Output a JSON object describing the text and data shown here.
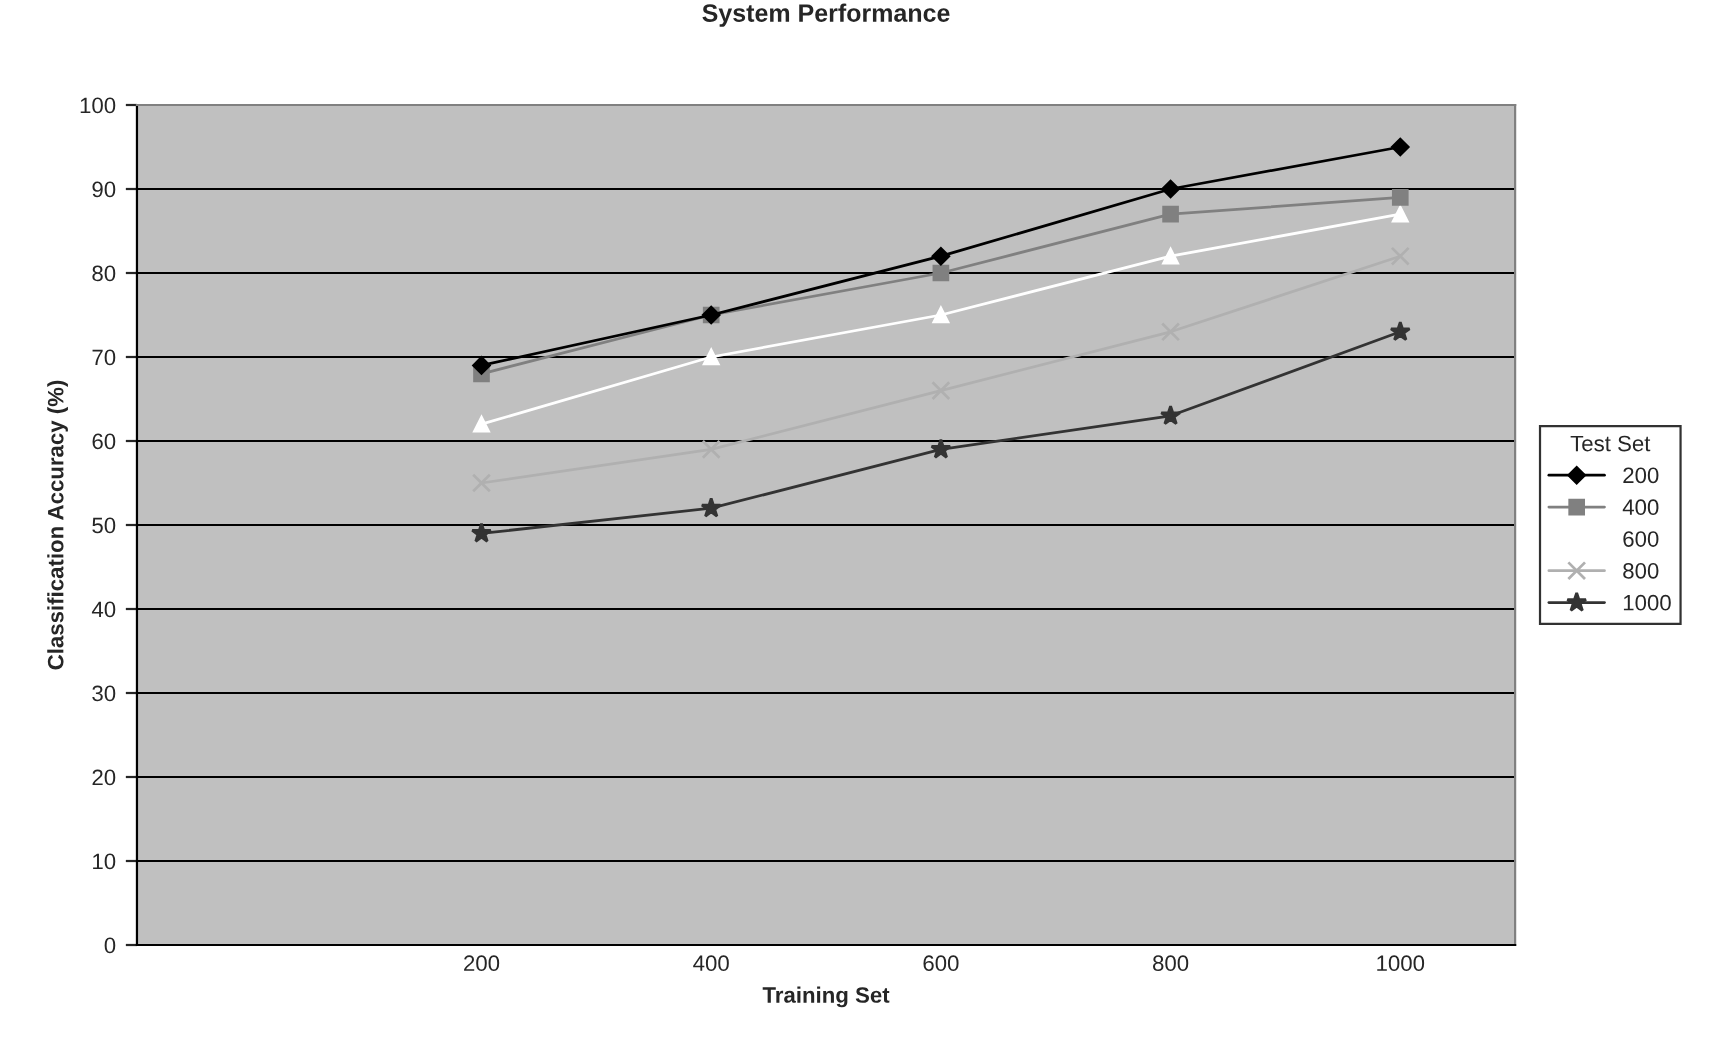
{
  "chart_data": {
    "type": "line",
    "title": "System Performance",
    "xlabel": "Training Set",
    "ylabel": "Classification Accuracy (%)",
    "categories": [
      null,
      "200",
      "400",
      "600",
      "800",
      "1000"
    ],
    "series": [
      {
        "name": "200",
        "color": "#000000",
        "marker": "diamond",
        "values": [
          null,
          69,
          75,
          82,
          90,
          95
        ]
      },
      {
        "name": "400",
        "color": "#808080",
        "marker": "square",
        "values": [
          null,
          68,
          75,
          80,
          87,
          89
        ]
      },
      {
        "name": "600",
        "color": "#ffffff",
        "marker": "triangle",
        "values": [
          null,
          62,
          70,
          75,
          82,
          87
        ]
      },
      {
        "name": "800",
        "color": "#b0b0b0",
        "marker": "cross",
        "values": [
          null,
          55,
          59,
          66,
          73,
          82
        ]
      },
      {
        "name": "1000",
        "color": "#333333",
        "marker": "star",
        "values": [
          null,
          49,
          52,
          59,
          63,
          73
        ]
      }
    ],
    "legend_title": "Test Set",
    "legend": "right",
    "grid": "y",
    "ylim": [
      0,
      100
    ],
    "yticks": [
      0,
      10,
      20,
      30,
      40,
      50,
      60,
      70,
      80,
      90,
      100
    ]
  }
}
